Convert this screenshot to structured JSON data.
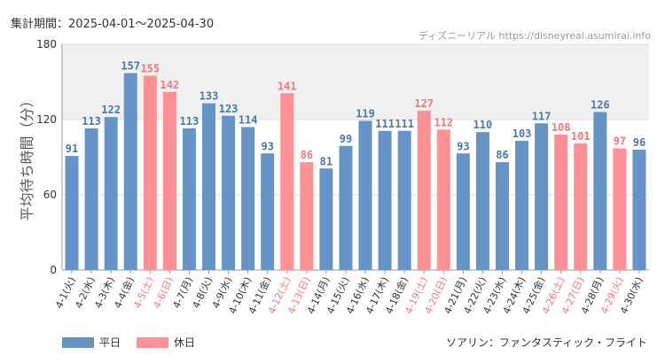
{
  "header": {
    "period_text": "集計期間：2025-04-01～2025-04-30",
    "source_text": "ディズニーリアル https://disneyreal.asumirai.info"
  },
  "footer": {
    "attraction_text": "ソアリン：ファンタスティック・フライト"
  },
  "colors": {
    "weekday": "#6694c6",
    "holiday": "#ff9094",
    "weekday_label": "#4a78ab",
    "holiday_label": "#f07878",
    "holiday_tick": "#f07878",
    "band": "#f0f0f0"
  },
  "chart_data": {
    "type": "bar",
    "ylabel": "平均待ち時間（分）",
    "ylim": [
      0,
      180
    ],
    "yticks": [
      0,
      60,
      120,
      180
    ],
    "grid": true,
    "legend_position": "bottom-left",
    "series": [
      {
        "name": "平日"
      },
      {
        "name": "休日"
      }
    ],
    "categories": [
      "4-1(火)",
      "4-2(水)",
      "4-3(木)",
      "4-4(金)",
      "4-5(土)",
      "4-6(日)",
      "4-7(月)",
      "4-8(火)",
      "4-9(水)",
      "4-10(木)",
      "4-11(金)",
      "4-12(土)",
      "4-13(日)",
      "4-14(月)",
      "4-15(火)",
      "4-16(水)",
      "4-17(木)",
      "4-18(金)",
      "4-19(土)",
      "4-20(日)",
      "4-21(月)",
      "4-22(火)",
      "4-23(水)",
      "4-24(木)",
      "4-25(金)",
      "4-26(土)",
      "4-27(日)",
      "4-28(月)",
      "4-29(火)",
      "4-30(水)"
    ],
    "values": [
      91,
      113,
      122,
      157,
      155,
      142,
      113,
      133,
      123,
      114,
      93,
      141,
      86,
      81,
      99,
      119,
      111,
      111,
      127,
      112,
      93,
      110,
      86,
      103,
      117,
      108,
      101,
      126,
      97,
      96
    ],
    "day_type": [
      "平日",
      "平日",
      "平日",
      "平日",
      "休日",
      "休日",
      "平日",
      "平日",
      "平日",
      "平日",
      "平日",
      "休日",
      "休日",
      "平日",
      "平日",
      "平日",
      "平日",
      "平日",
      "休日",
      "休日",
      "平日",
      "平日",
      "平日",
      "平日",
      "平日",
      "休日",
      "休日",
      "平日",
      "休日",
      "平日"
    ]
  }
}
